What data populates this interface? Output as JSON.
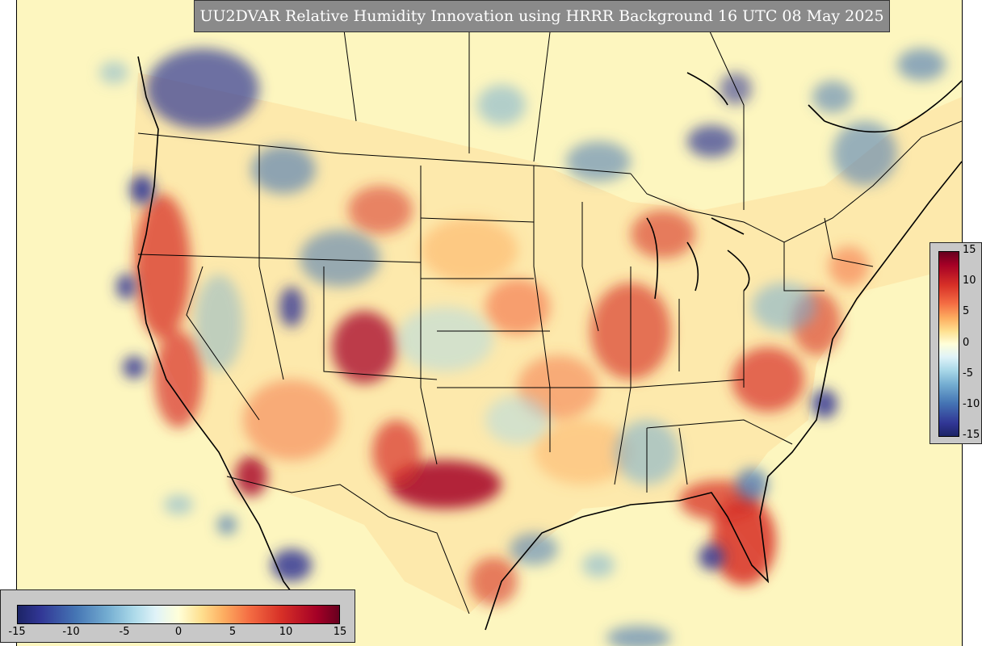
{
  "title": "UU2DVAR Relative Humidity Innovation using HRRR Background 16 UTC 08 May 2025",
  "colormap": {
    "stops": [
      "#1c2466",
      "#313695",
      "#4575b4",
      "#74add1",
      "#abd9e9",
      "#e0f3f8",
      "#ffffd9",
      "#fee090",
      "#fdae61",
      "#f46d43",
      "#d73027",
      "#a50026",
      "#67001f"
    ],
    "background": "#fdf6bf",
    "range": [
      -15,
      15
    ]
  },
  "legend_right": {
    "ticks": [
      "15",
      "10",
      "5",
      "0",
      "-5",
      "-10",
      "-15"
    ]
  },
  "legend_bottom": {
    "ticks": [
      "-15",
      "-10",
      "-5",
      "0",
      "5",
      "10",
      "15"
    ]
  }
}
